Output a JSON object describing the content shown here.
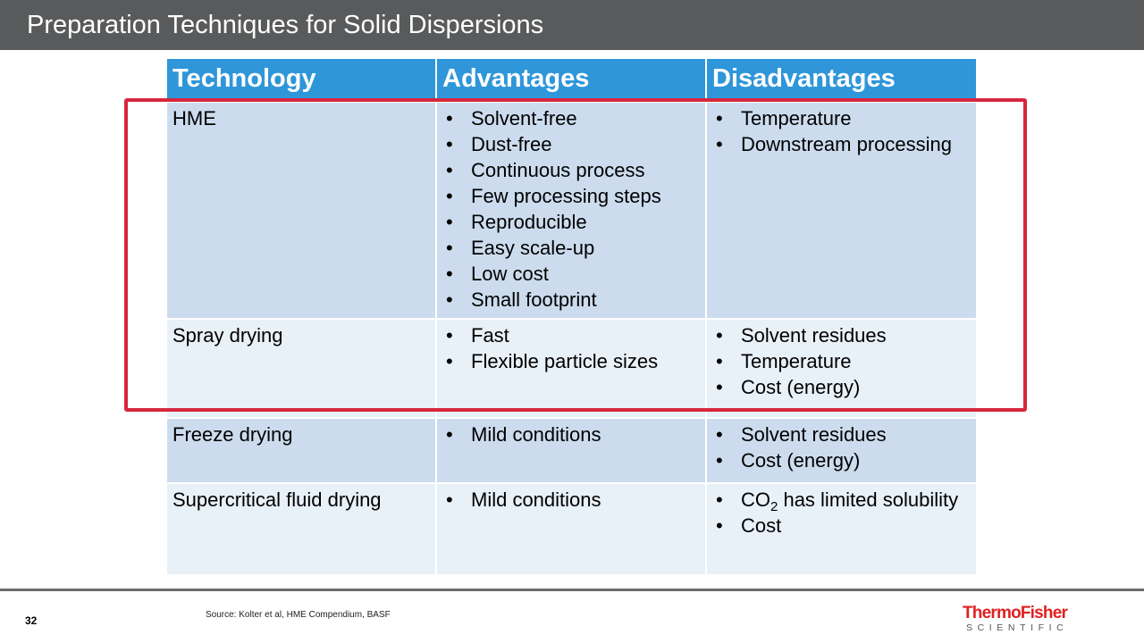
{
  "slide": {
    "title": "Preparation Techniques for Solid Dispersions",
    "page_number": "32",
    "source": "Source: Kolter et al, HME Compendium, BASF"
  },
  "table": {
    "headers": [
      "Technology",
      "Advantages",
      "Disadvantages"
    ],
    "rows": [
      {
        "technology": "HME",
        "advantages": [
          "Solvent-free",
          "Dust-free",
          "Continuous process",
          "Few processing steps",
          "Reproducible",
          "Easy scale-up",
          "Low cost",
          "Small footprint"
        ],
        "disadvantages": [
          "Temperature",
          "Downstream processing"
        ]
      },
      {
        "technology": "Spray drying",
        "advantages": [
          "Fast",
          "Flexible particle sizes"
        ],
        "disadvantages": [
          "Solvent residues",
          "Temperature",
          "Cost (energy)"
        ]
      },
      {
        "technology": "Freeze drying",
        "advantages": [
          "Mild conditions"
        ],
        "disadvantages": [
          "Solvent residues",
          "Cost (energy)"
        ]
      },
      {
        "technology": "Supercritical fluid drying",
        "advantages": [
          "Mild conditions"
        ],
        "disadvantages_special": {
          "co": "CO",
          "sub": "2",
          "rest": " has limited solubility"
        },
        "disadvantages": [
          "Cost"
        ]
      }
    ]
  },
  "logo": {
    "line1": "ThermoFisher",
    "line2": "SCIENTIFIC"
  },
  "colors": {
    "title_bar": "#595a5b",
    "header_fill": "#2e96d9",
    "row_dark": "#ccdcee",
    "row_light": "#e8f0f8",
    "highlight": "#d7263d",
    "logo_red": "#e02021"
  }
}
